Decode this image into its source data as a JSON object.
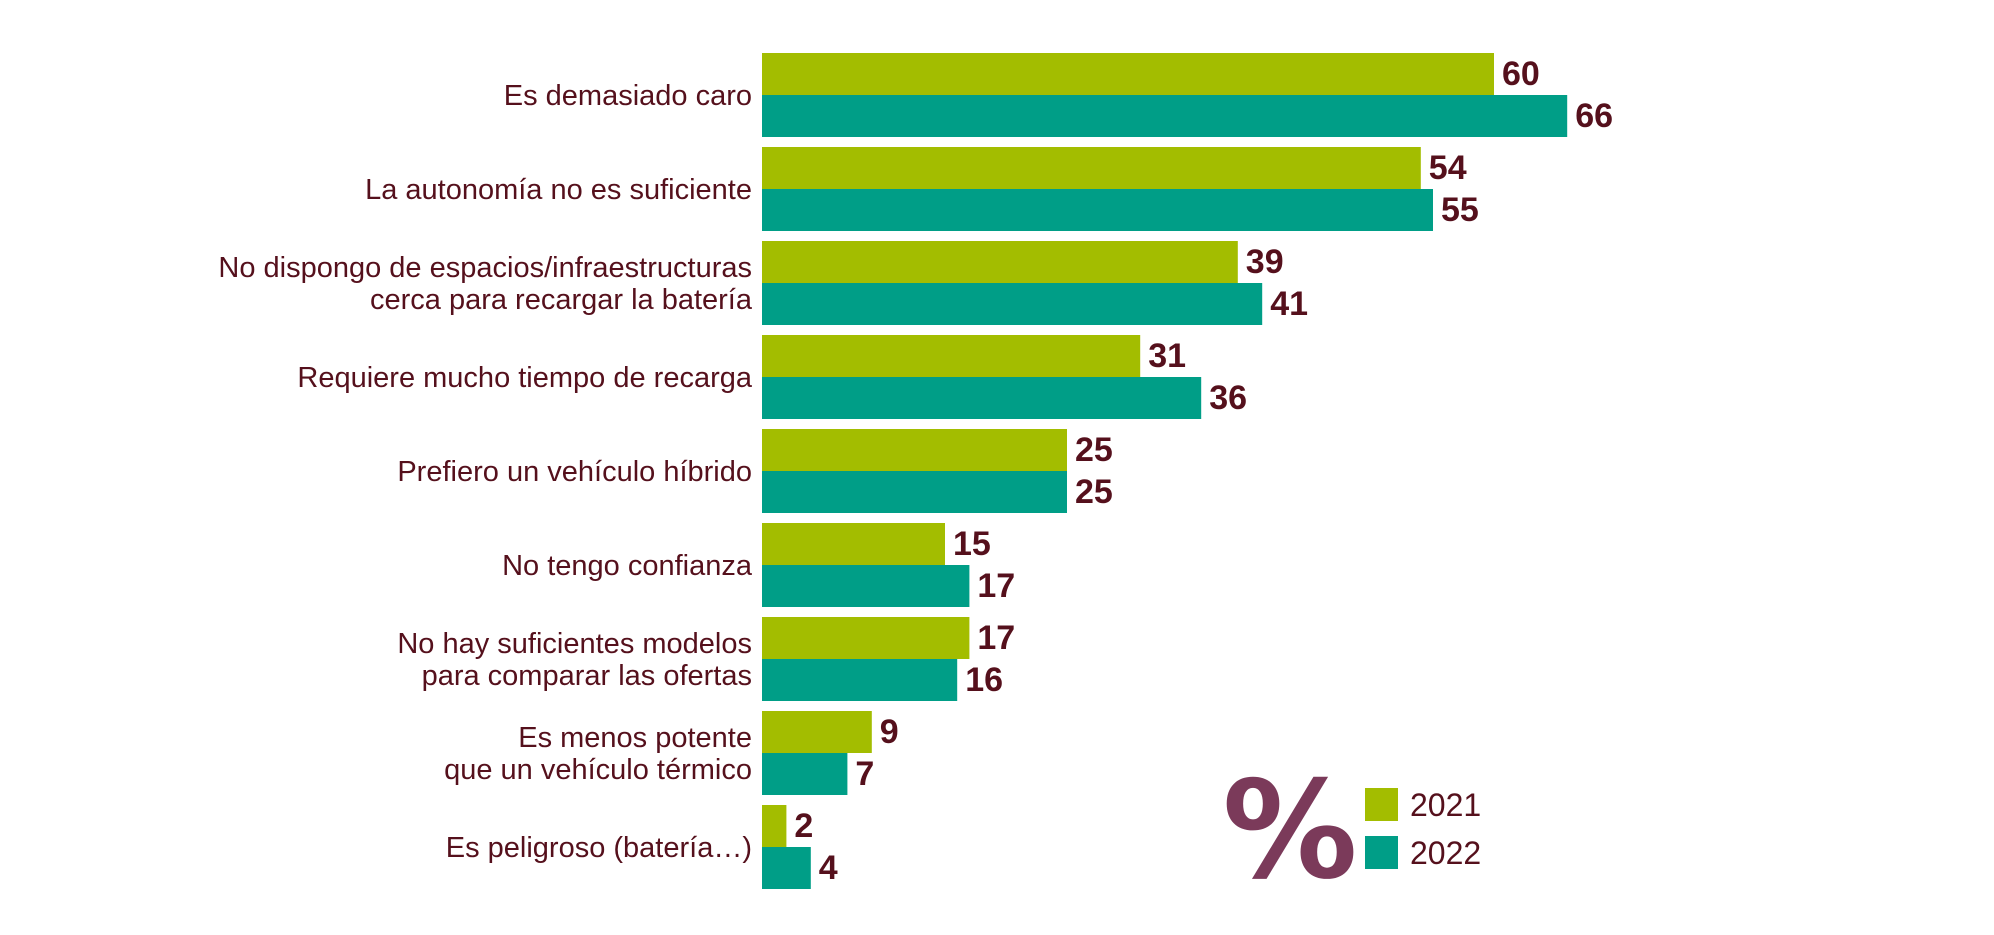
{
  "chart_data": {
    "type": "bar",
    "orientation": "horizontal",
    "unit_symbol": "%",
    "categories": [
      [
        "Es demasiado caro"
      ],
      [
        "La autonomía no es suficiente"
      ],
      [
        "No dispongo de espacios/infraestructuras",
        "cerca para recargar la batería"
      ],
      [
        "Requiere mucho tiempo de recarga"
      ],
      [
        "Prefiero un vehículo híbrido"
      ],
      [
        "No tengo confianza"
      ],
      [
        "No hay suficientes modelos",
        "para comparar las ofertas"
      ],
      [
        "Es menos potente",
        "que un vehículo térmico"
      ],
      [
        "Es peligroso (batería…)"
      ]
    ],
    "series": [
      {
        "name": "2021",
        "color": "#a3bd00",
        "values": [
          60,
          54,
          39,
          31,
          25,
          15,
          17,
          9,
          2
        ]
      },
      {
        "name": "2022",
        "color": "#009e87",
        "values": [
          66,
          55,
          41,
          36,
          25,
          17,
          16,
          7,
          4
        ]
      }
    ],
    "xlim": [
      0,
      100
    ],
    "grid": false,
    "legend": {
      "position": "bottom-right"
    },
    "colors": {
      "label_text": "#55101c",
      "percent_symbol": "#7b3a5a"
    }
  }
}
